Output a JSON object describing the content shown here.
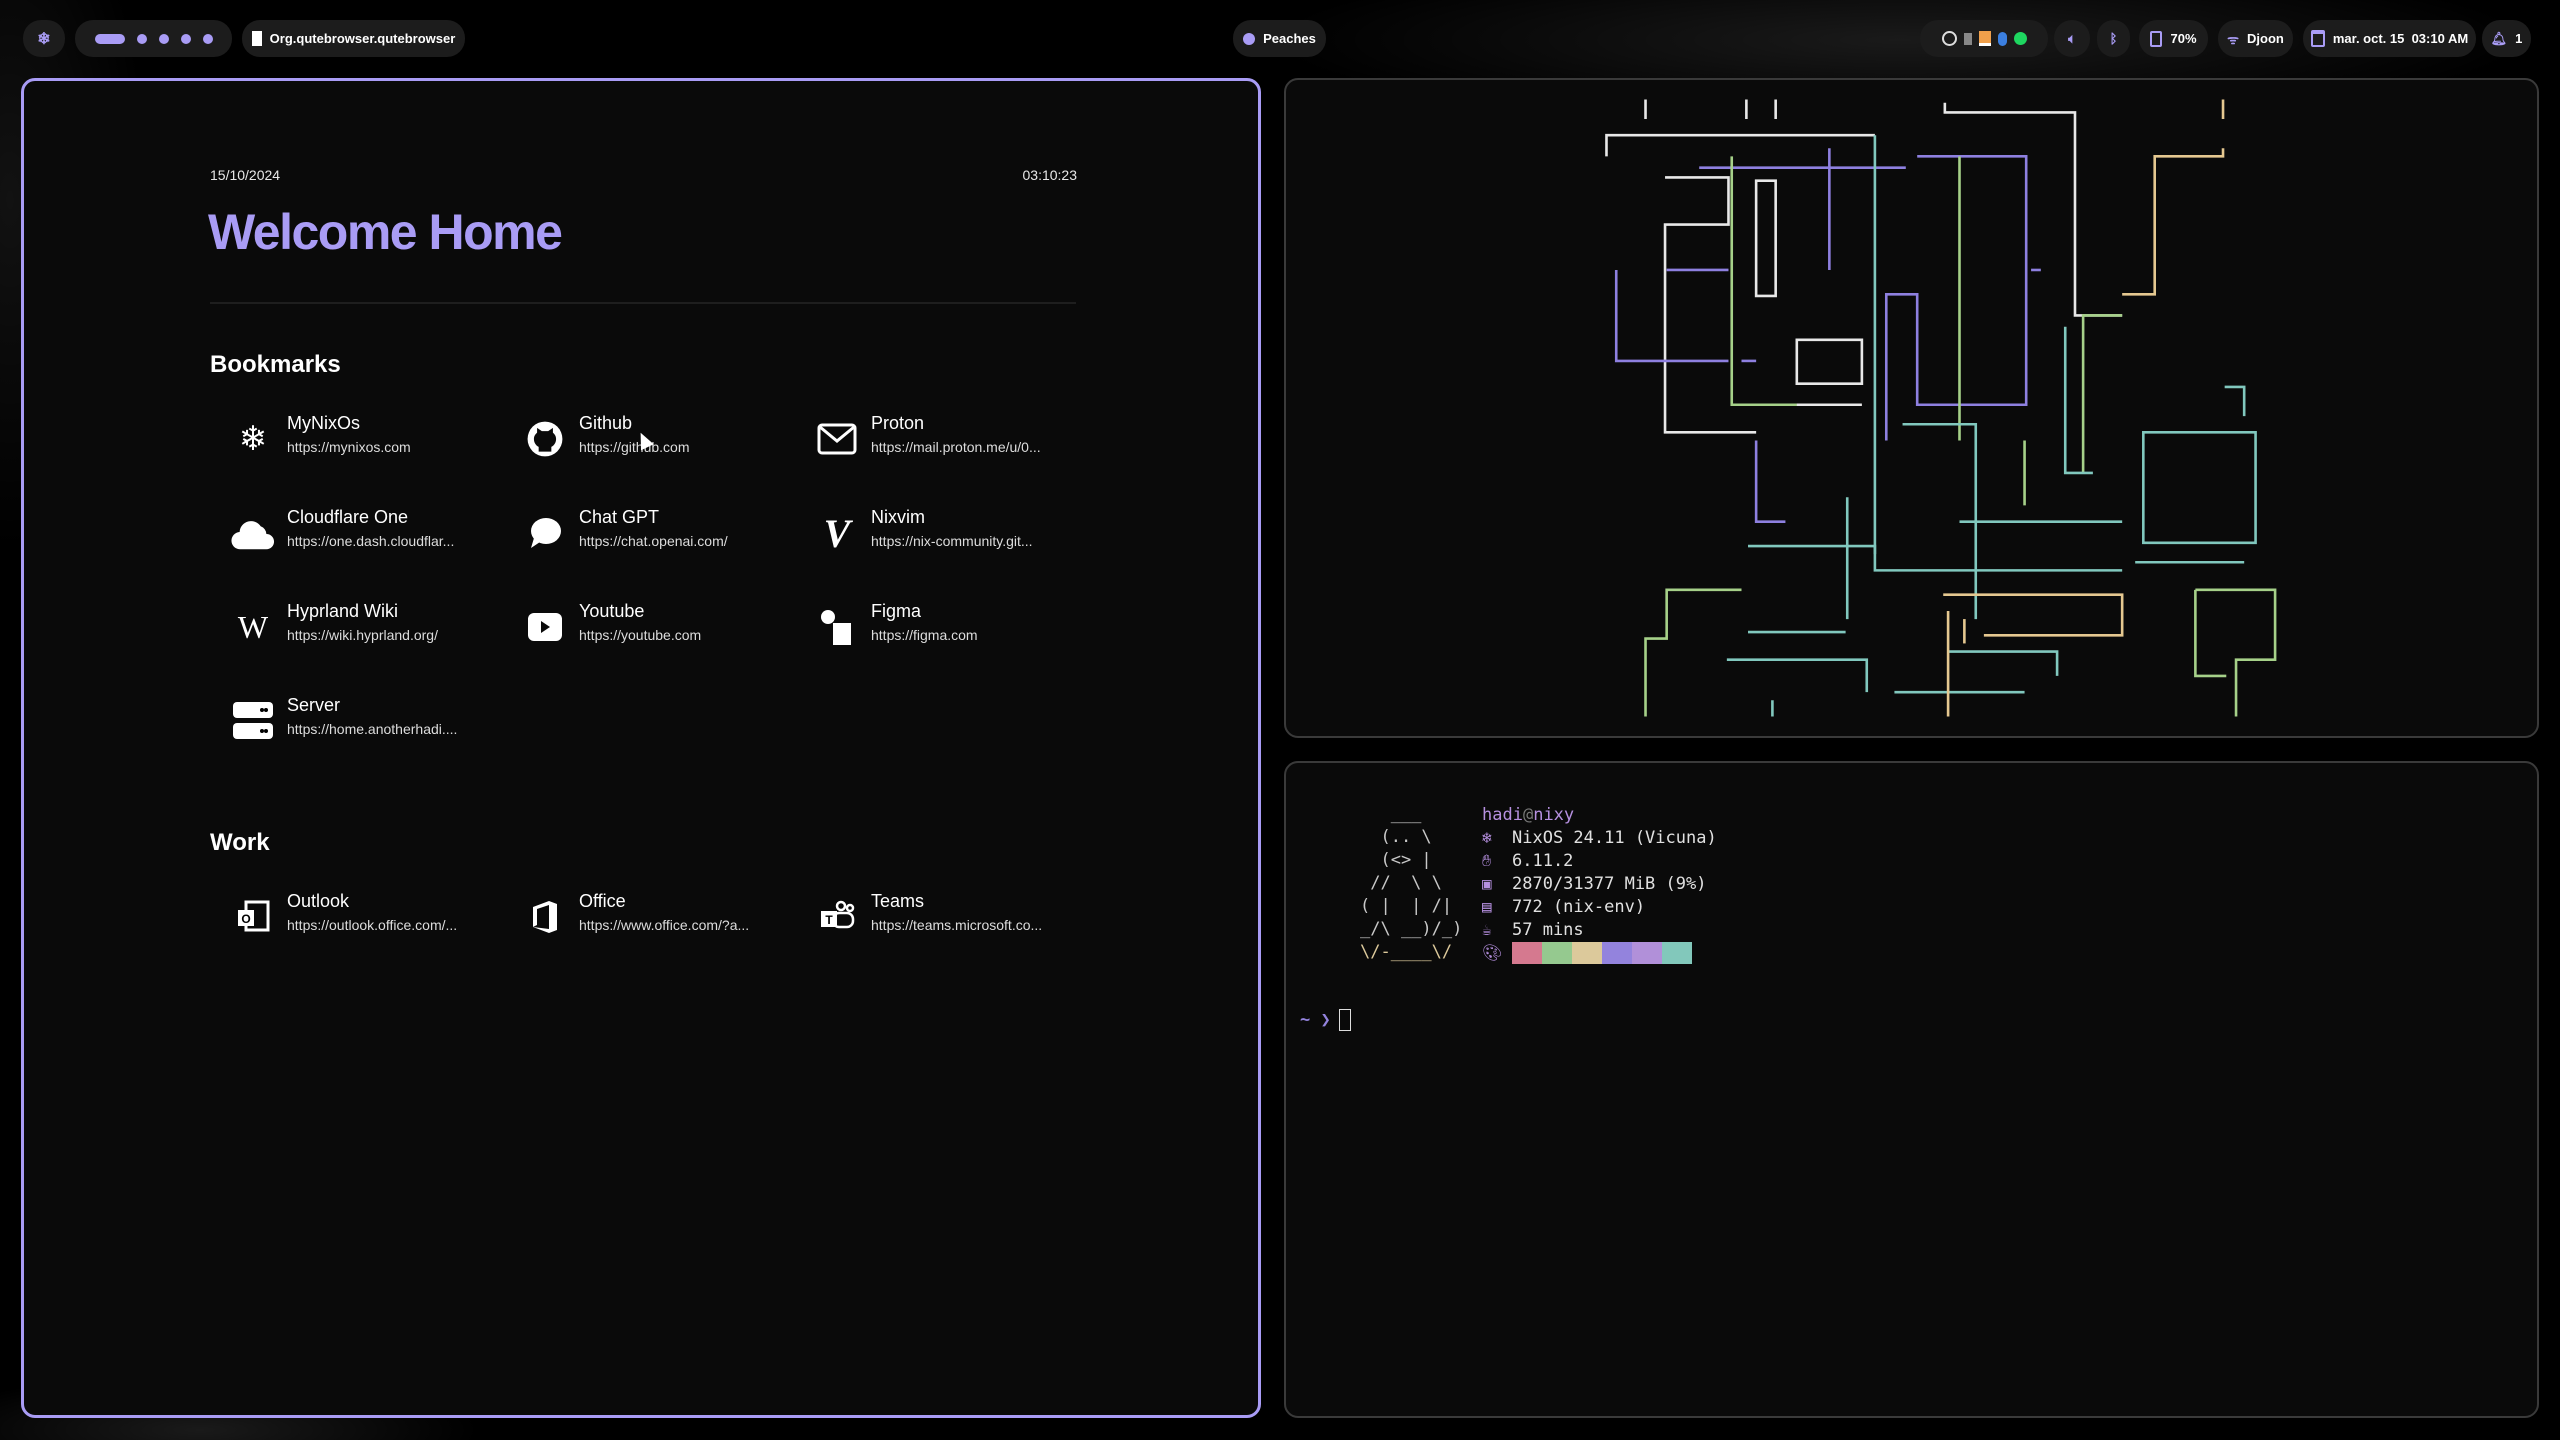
{
  "topbar": {
    "workspaces": [
      {
        "active": true
      },
      {
        "active": false
      },
      {
        "active": false
      },
      {
        "active": false
      },
      {
        "active": false
      }
    ],
    "window_title": "Org.qutebrowser.qutebrowser",
    "media": "Peaches",
    "battery": "70%",
    "wifi": "Djoon",
    "datetime": "mar. oct. 15  03:10 AM",
    "notifications": "1",
    "tray_icons": [
      "disc-icon",
      "keepassxc-icon",
      "drive-icon",
      "bluetooth-icon",
      "spotify-icon"
    ]
  },
  "browser": {
    "date": "15/10/2024",
    "time": "03:10:23",
    "title": "Welcome Home",
    "sections": [
      {
        "heading": "Bookmarks",
        "items": [
          {
            "name": "MyNixOs",
            "url": "https://mynixos.com",
            "icon": "nix-snowflake-icon"
          },
          {
            "name": "Github",
            "url": "https://github.com",
            "icon": "github-icon"
          },
          {
            "name": "Proton",
            "url": "https://mail.proton.me/u/0...",
            "icon": "mail-icon"
          },
          {
            "name": "Cloudflare One",
            "url": "https://one.dash.cloudflar...",
            "icon": "cloud-icon"
          },
          {
            "name": "Chat GPT",
            "url": "https://chat.openai.com/",
            "icon": "chat-bubble-icon"
          },
          {
            "name": "Nixvim",
            "url": "https://nix-community.git...",
            "icon": "vim-icon"
          },
          {
            "name": "Hyprland Wiki",
            "url": "https://wiki.hyprland.org/",
            "icon": "wikipedia-icon"
          },
          {
            "name": "Youtube",
            "url": "https://youtube.com",
            "icon": "youtube-icon"
          },
          {
            "name": "Figma",
            "url": "https://figma.com",
            "icon": "figma-icon"
          },
          {
            "name": "Server",
            "url": "https://home.anotherhadi....",
            "icon": "server-icon"
          }
        ]
      },
      {
        "heading": "Work",
        "items": [
          {
            "name": "Outlook",
            "url": "https://outlook.office.com/...",
            "icon": "outlook-icon"
          },
          {
            "name": "Office",
            "url": "https://www.office.com/?a...",
            "icon": "office-icon"
          },
          {
            "name": "Teams",
            "url": "https://teams.microsoft.co...",
            "icon": "teams-icon"
          }
        ]
      }
    ]
  },
  "terminal": {
    "user": "hadi",
    "at": "@",
    "host": "nixy",
    "ascii_art": [
      "   ___",
      "  (.. \\",
      "  (<> |",
      " //  \\ \\",
      "( |  | /|",
      "_/\\ __)/_)",
      "\\/-____\\/"
    ],
    "info": [
      {
        "icon": "nix-snowflake-icon",
        "text": "NixOS 24.11 (Vicuna)"
      },
      {
        "icon": "kernel-icon",
        "text": "6.11.2"
      },
      {
        "icon": "memory-chip-icon",
        "text": "2870/31377 MiB (9%)"
      },
      {
        "icon": "package-icon",
        "text": "772 (nix-env)"
      },
      {
        "icon": "coffee-cup-icon",
        "text": "57 mins"
      }
    ],
    "palette": [
      "#d5798f",
      "#95c98f",
      "#dcc99b",
      "#9383dd",
      "#b190d9",
      "#82c8bb"
    ],
    "prompt": "~ ❯"
  },
  "colors": {
    "accent": "#a99cf5",
    "pipes": [
      "#e8e8e8",
      "#8e80e0",
      "#a6d189",
      "#81c8be",
      "#e5c890"
    ]
  }
}
